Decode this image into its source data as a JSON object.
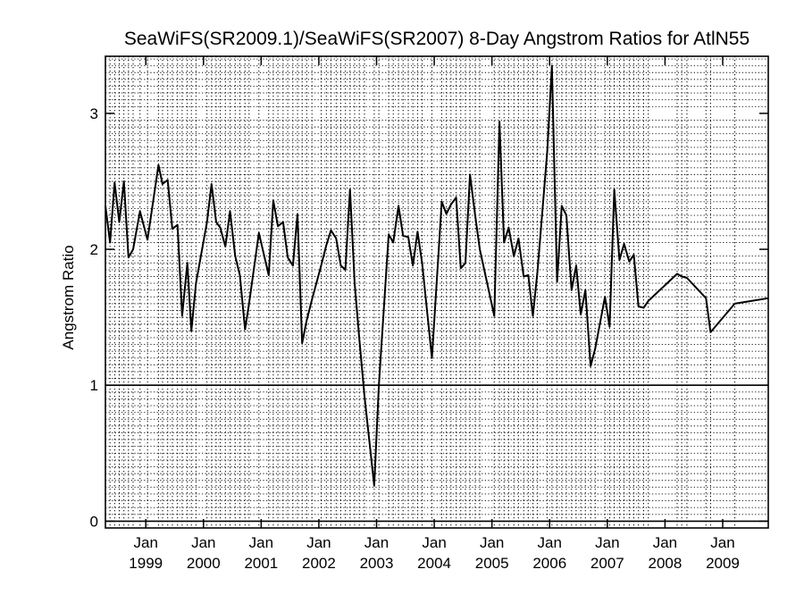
{
  "chart_data": {
    "type": "line",
    "title": "SeaWiFS(SR2009.1)/SeaWiFS(SR2007) 8-Day Angstrom Ratios for AtlN55",
    "xlabel": "",
    "ylabel": "Angstrom Ratio",
    "xlim": [
      1998.3,
      2009.79
    ],
    "ylim": [
      -0.05,
      3.42
    ],
    "yticks": [
      0,
      1,
      2,
      3
    ],
    "xticks": [
      {
        "value": 1999.0,
        "month": "Jan",
        "year": "1999"
      },
      {
        "value": 2000.0,
        "month": "Jan",
        "year": "2000"
      },
      {
        "value": 2001.0,
        "month": "Jan",
        "year": "2001"
      },
      {
        "value": 2002.0,
        "month": "Jan",
        "year": "2002"
      },
      {
        "value": 2003.0,
        "month": "Jan",
        "year": "2003"
      },
      {
        "value": 2004.0,
        "month": "Jan",
        "year": "2004"
      },
      {
        "value": 2005.0,
        "month": "Jan",
        "year": "2005"
      },
      {
        "value": 2006.0,
        "month": "Jan",
        "year": "2006"
      },
      {
        "value": 2007.0,
        "month": "Jan",
        "year": "2007"
      },
      {
        "value": 2008.0,
        "month": "Jan",
        "year": "2008"
      },
      {
        "value": 2009.0,
        "month": "Jan",
        "year": "2009"
      }
    ],
    "reference_lines": [
      0,
      1
    ],
    "grid": "dotted horizontal lines every 0.05, dotted vertical lines at each data date",
    "series": [
      {
        "x": [
          1998.3,
          1998.38,
          1998.46,
          1998.54,
          1998.62,
          1998.7,
          1998.78,
          1998.9,
          1999.03,
          1999.22,
          1999.29,
          1999.38,
          1999.46,
          1999.55,
          1999.63,
          1999.72,
          1999.79,
          1999.87,
          2000.06,
          2000.14,
          2000.22,
          2000.29,
          2000.38,
          2000.46,
          2000.55,
          2000.63,
          2000.72,
          2000.79,
          2000.96,
          2001.13,
          2001.21,
          2001.29,
          2001.38,
          2001.46,
          2001.55,
          2001.63,
          2001.71,
          2001.79,
          2001.88,
          2002.04,
          2002.13,
          2002.21,
          2002.3,
          2002.38,
          2002.46,
          2002.54,
          2002.62,
          2002.7,
          2002.79,
          2002.96,
          2003.04,
          2003.21,
          2003.29,
          2003.38,
          2003.46,
          2003.55,
          2003.63,
          2003.71,
          2003.79,
          2003.96,
          2004.13,
          2004.21,
          2004.29,
          2004.38,
          2004.46,
          2004.54,
          2004.62,
          2004.71,
          2004.79,
          2005.04,
          2005.13,
          2005.21,
          2005.29,
          2005.38,
          2005.46,
          2005.55,
          2005.63,
          2005.71,
          2005.79,
          2005.96,
          2006.04,
          2006.13,
          2006.21,
          2006.29,
          2006.38,
          2006.46,
          2006.54,
          2006.62,
          2006.71,
          2006.79,
          2006.96,
          2007.04,
          2007.12,
          2007.21,
          2007.29,
          2007.38,
          2007.46,
          2007.54,
          2007.63,
          2007.71,
          2008.21,
          2008.29,
          2008.38,
          2008.71,
          2008.79,
          2009.21,
          2009.79
        ],
        "y": [
          2.32,
          2.05,
          2.49,
          2.2,
          2.5,
          1.94,
          2.0,
          2.28,
          2.07,
          2.62,
          2.48,
          2.51,
          2.15,
          2.18,
          1.51,
          1.9,
          1.4,
          1.75,
          2.2,
          2.48,
          2.2,
          2.16,
          2.02,
          2.28,
          1.95,
          1.81,
          1.41,
          1.6,
          2.12,
          1.81,
          2.36,
          2.17,
          2.2,
          1.94,
          1.88,
          2.26,
          1.31,
          1.48,
          1.63,
          1.88,
          2.03,
          2.14,
          2.08,
          1.88,
          1.85,
          2.44,
          1.75,
          1.35,
          0.92,
          0.26,
          1.0,
          2.11,
          2.05,
          2.32,
          2.1,
          2.09,
          1.88,
          2.13,
          1.9,
          1.2,
          2.35,
          2.26,
          2.33,
          2.38,
          1.86,
          1.9,
          2.55,
          2.25,
          2.0,
          1.51,
          2.94,
          2.05,
          2.16,
          1.95,
          2.08,
          1.8,
          1.81,
          1.51,
          1.84,
          2.73,
          3.35,
          1.76,
          2.32,
          2.25,
          1.7,
          1.88,
          1.52,
          1.7,
          1.14,
          1.27,
          1.65,
          1.43,
          2.44,
          1.92,
          2.04,
          1.91,
          1.96,
          1.58,
          1.57,
          1.62,
          1.82,
          1.8,
          1.79,
          1.64,
          1.39,
          1.6,
          1.64
        ]
      }
    ]
  }
}
